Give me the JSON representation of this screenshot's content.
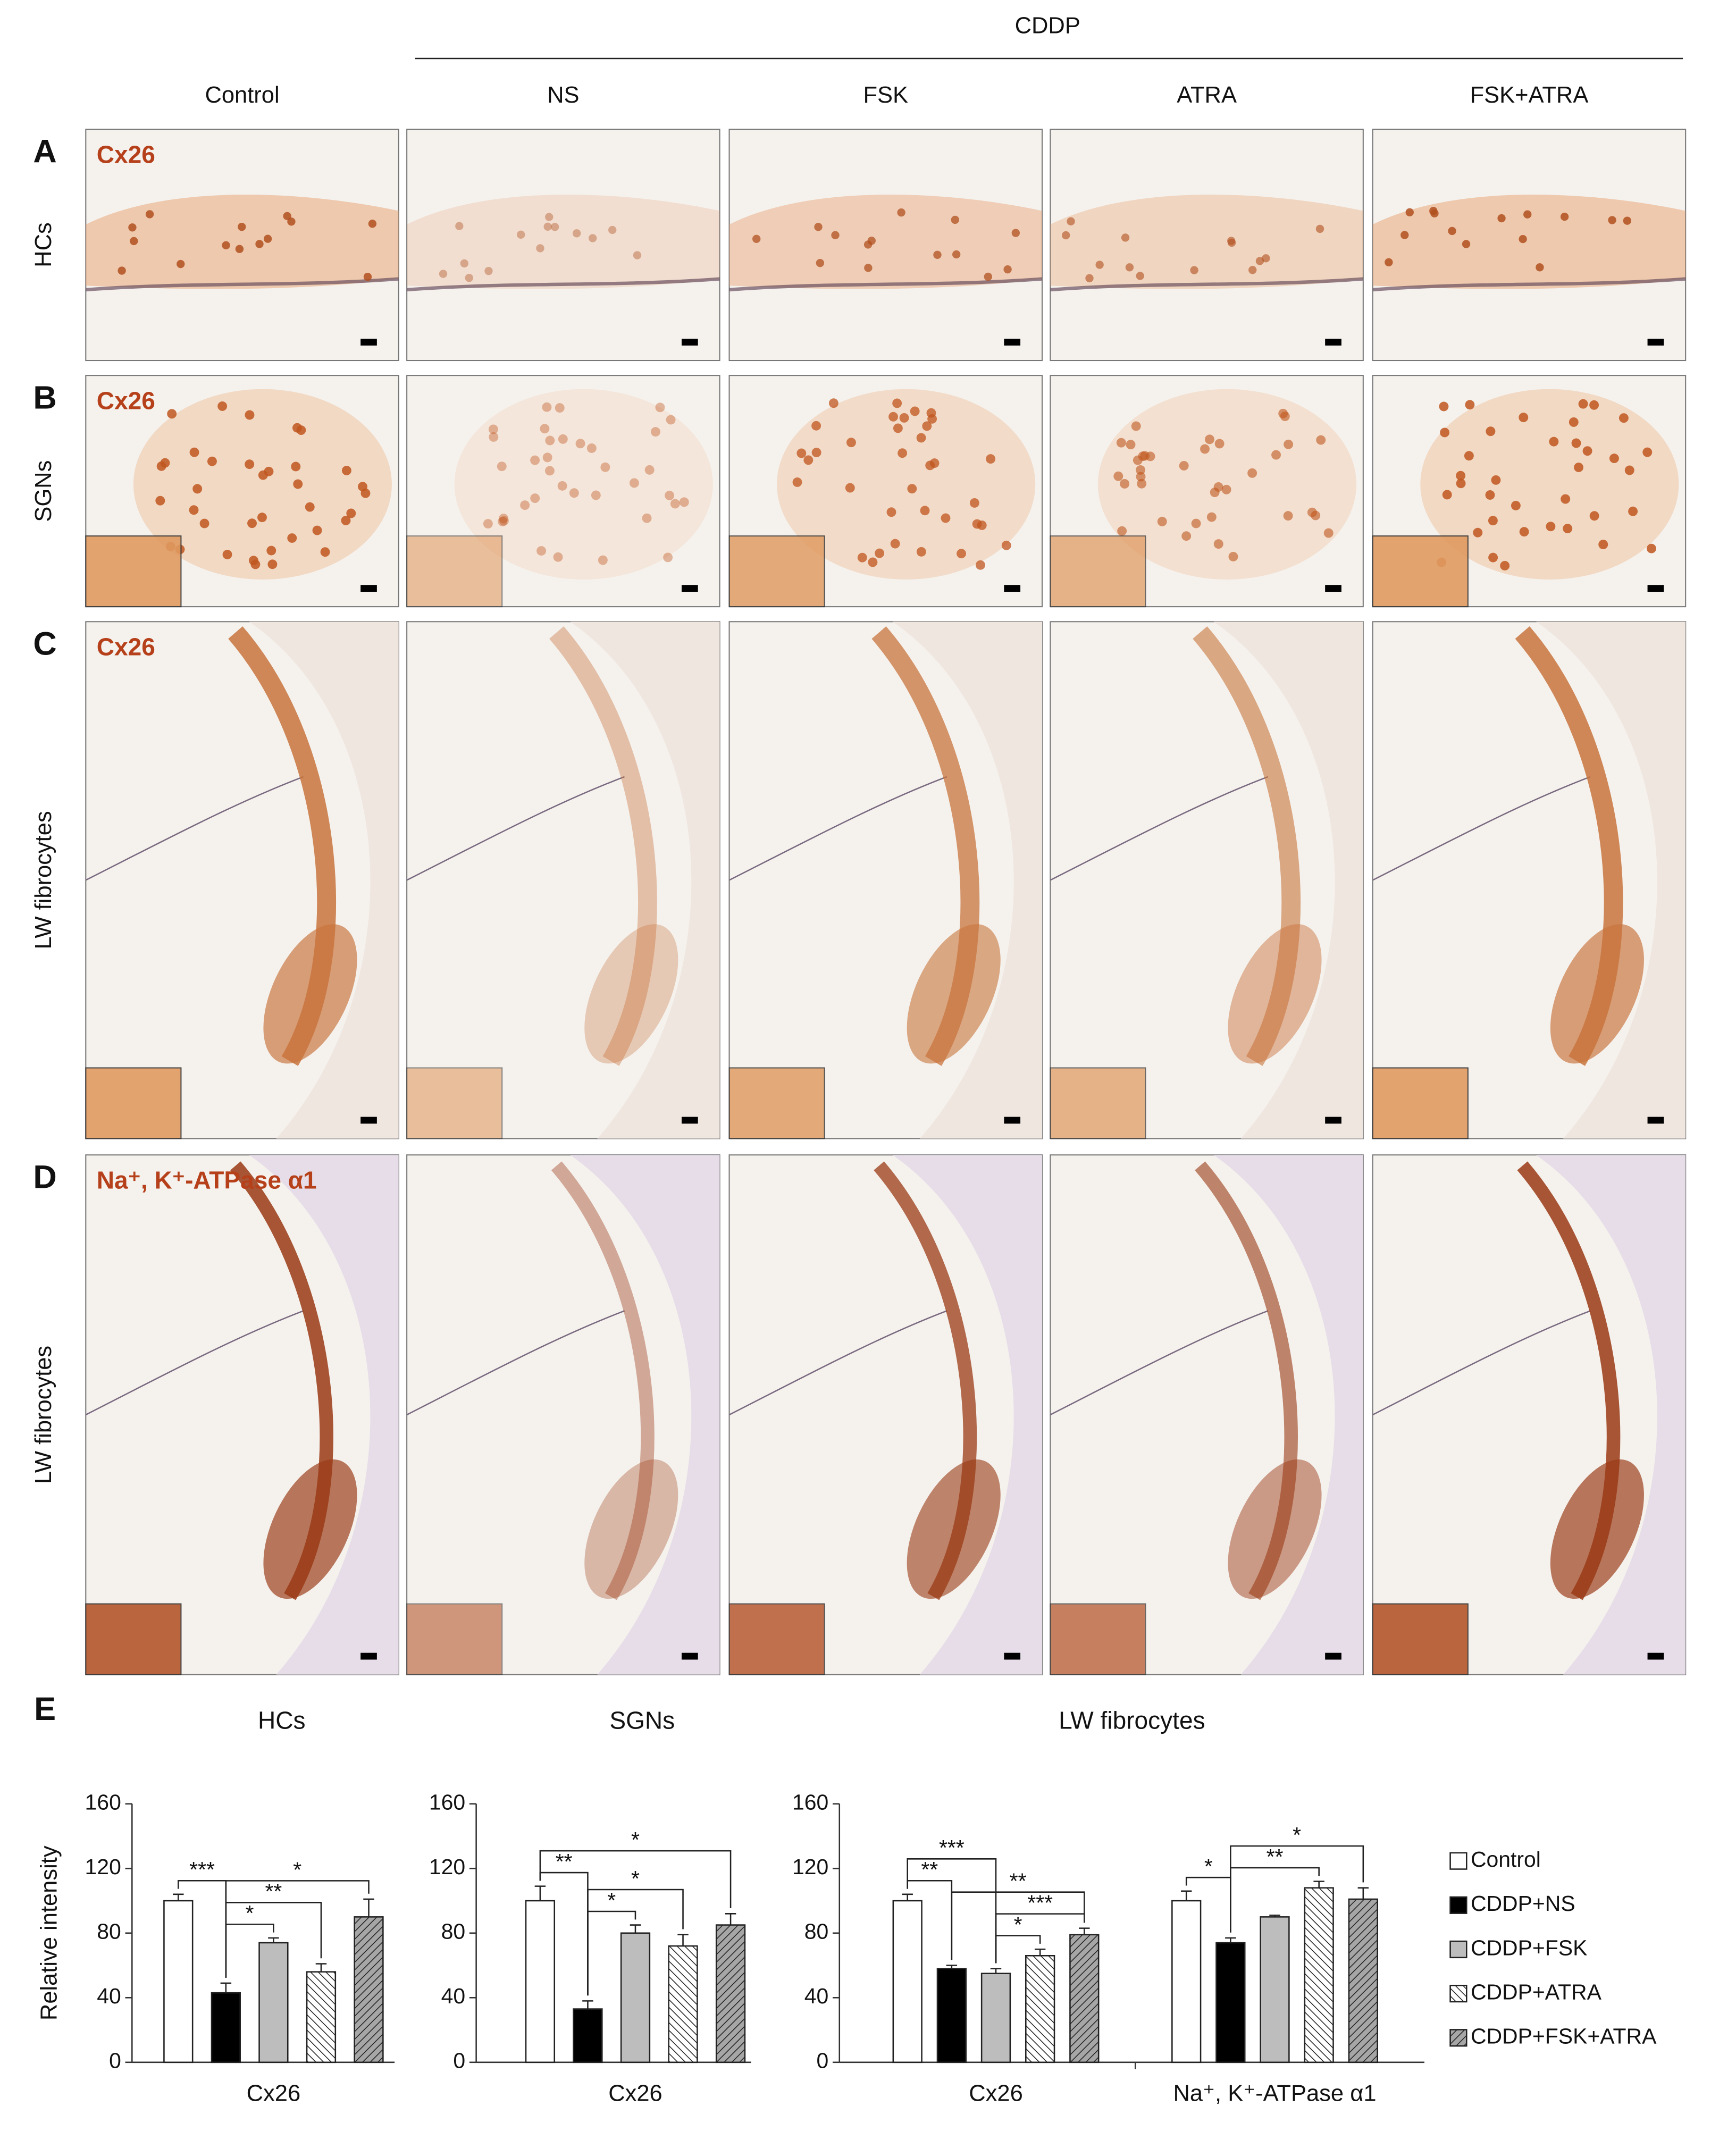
{
  "header": {
    "group_label": "CDDP",
    "columns": [
      "Control",
      "NS",
      "FSK",
      "ATRA",
      "FSK+ATRA"
    ]
  },
  "rows": [
    {
      "panel": "A",
      "label": "HCs",
      "stain": "Cx26"
    },
    {
      "panel": "B",
      "label": "SGNs",
      "stain": "Cx26"
    },
    {
      "panel": "C",
      "label": "LW fibrocytes",
      "stain": "Cx26"
    },
    {
      "panel": "D",
      "label": "LW fibrocytes",
      "stain": "Na⁺, K⁺-ATPase α1"
    }
  ],
  "panel_e": "E",
  "chart_data": [
    {
      "type": "bar",
      "title": "HCs",
      "y_label": "Relative intensity",
      "categories": [
        "Cx26"
      ],
      "ylim": [
        0,
        160
      ],
      "yticks": [
        0,
        40,
        80,
        120,
        160
      ],
      "legend": false,
      "series": [
        {
          "name": "Control",
          "color": "#ffffff",
          "hatch": false,
          "values": [
            100
          ],
          "errors": [
            4
          ]
        },
        {
          "name": "CDDP+NS",
          "color": "#000000",
          "hatch": false,
          "values": [
            43
          ],
          "errors": [
            6
          ]
        },
        {
          "name": "CDDP+FSK",
          "color": "#bdbdbd",
          "hatch": false,
          "values": [
            74
          ],
          "errors": [
            3
          ]
        },
        {
          "name": "CDDP+ATRA",
          "color": "#ffffff",
          "hatch": true,
          "values": [
            56
          ],
          "errors": [
            5
          ]
        },
        {
          "name": "CDDP+FSK+ATRA",
          "color": "#a6a6a6",
          "hatch": true,
          "values": [
            90
          ],
          "errors": [
            11
          ]
        }
      ],
      "significance": [
        {
          "group": 0,
          "pair": [
            0,
            1
          ],
          "label": "***"
        },
        {
          "group": 0,
          "pair": [
            1,
            2
          ],
          "label": "*"
        },
        {
          "group": 0,
          "pair": [
            1,
            3
          ],
          "label": "**"
        },
        {
          "group": 0,
          "pair": [
            1,
            4
          ],
          "label": "*"
        }
      ]
    },
    {
      "type": "bar",
      "title": "SGNs",
      "categories": [
        "Cx26"
      ],
      "ylim": [
        0,
        160
      ],
      "yticks": [
        0,
        40,
        80,
        120,
        160
      ],
      "legend": false,
      "series": [
        {
          "name": "Control",
          "color": "#ffffff",
          "hatch": false,
          "values": [
            100
          ],
          "errors": [
            9
          ]
        },
        {
          "name": "CDDP+NS",
          "color": "#000000",
          "hatch": false,
          "values": [
            33
          ],
          "errors": [
            5
          ]
        },
        {
          "name": "CDDP+FSK",
          "color": "#bdbdbd",
          "hatch": false,
          "values": [
            80
          ],
          "errors": [
            5
          ]
        },
        {
          "name": "CDDP+ATRA",
          "color": "#ffffff",
          "hatch": true,
          "values": [
            72
          ],
          "errors": [
            7
          ]
        },
        {
          "name": "CDDP+FSK+ATRA",
          "color": "#a6a6a6",
          "hatch": true,
          "values": [
            85
          ],
          "errors": [
            7
          ]
        }
      ],
      "significance": [
        {
          "group": 0,
          "pair": [
            0,
            1
          ],
          "label": "**"
        },
        {
          "group": 0,
          "pair": [
            1,
            2
          ],
          "label": "*"
        },
        {
          "group": 0,
          "pair": [
            1,
            3
          ],
          "label": "*"
        },
        {
          "group": 0,
          "pair": [
            0,
            4
          ],
          "label": "*"
        }
      ]
    },
    {
      "type": "bar",
      "title": "LW fibrocytes",
      "categories": [
        "Cx26",
        "Na⁺, K⁺-ATPase α1"
      ],
      "ylim": [
        0,
        160
      ],
      "yticks": [
        0,
        40,
        80,
        120,
        160
      ],
      "legend": true,
      "legend_position": "right",
      "series": [
        {
          "name": "Control",
          "color": "#ffffff",
          "hatch": false,
          "values": [
            100,
            100
          ],
          "errors": [
            4,
            6
          ]
        },
        {
          "name": "CDDP+NS",
          "color": "#000000",
          "hatch": false,
          "values": [
            58,
            74
          ],
          "errors": [
            2,
            3
          ]
        },
        {
          "name": "CDDP+FSK",
          "color": "#bdbdbd",
          "hatch": false,
          "values": [
            55,
            90
          ],
          "errors": [
            3,
            1
          ]
        },
        {
          "name": "CDDP+ATRA",
          "color": "#ffffff",
          "hatch": true,
          "values": [
            66,
            108
          ],
          "errors": [
            4,
            4
          ]
        },
        {
          "name": "CDDP+FSK+ATRA",
          "color": "#a6a6a6",
          "hatch": true,
          "values": [
            79,
            101
          ],
          "errors": [
            4,
            7
          ]
        }
      ],
      "significance": [
        {
          "group": 0,
          "pair": [
            2,
            3
          ],
          "label": "*"
        },
        {
          "group": 0,
          "pair": [
            2,
            4
          ],
          "label": "***"
        },
        {
          "group": 0,
          "pair": [
            0,
            1
          ],
          "label": "**"
        },
        {
          "group": 0,
          "pair": [
            1,
            4
          ],
          "label": "**"
        },
        {
          "group": 0,
          "pair": [
            0,
            2
          ],
          "label": "***"
        },
        {
          "group": 1,
          "pair": [
            0,
            1
          ],
          "label": "*"
        },
        {
          "group": 1,
          "pair": [
            1,
            3
          ],
          "label": "**"
        },
        {
          "group": 1,
          "pair": [
            1,
            4
          ],
          "label": "*"
        }
      ]
    }
  ]
}
